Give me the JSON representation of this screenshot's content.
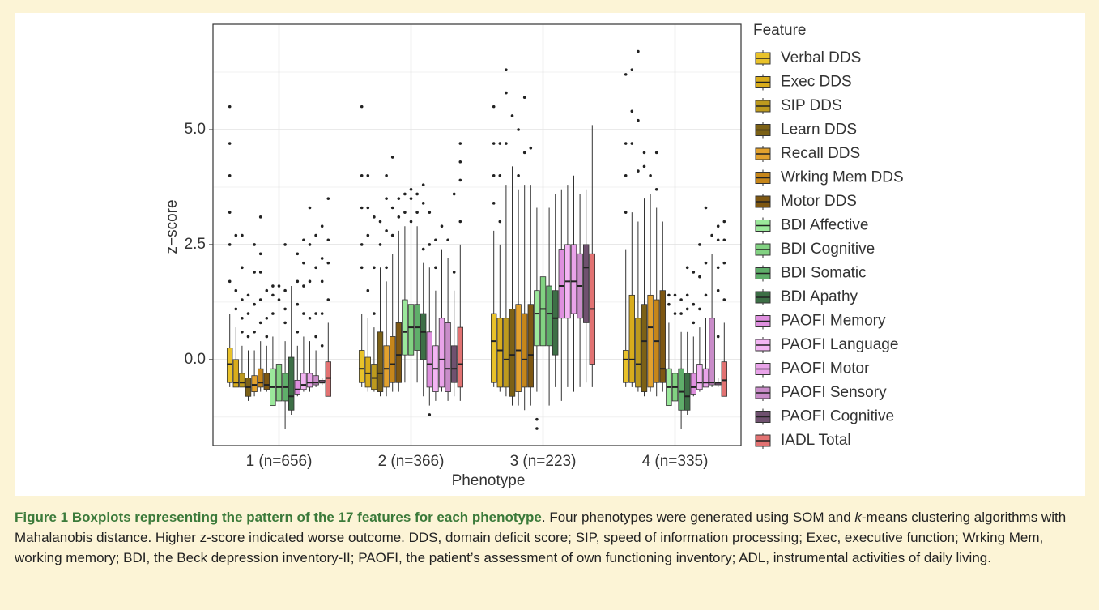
{
  "chart_data": {
    "type": "boxplot",
    "x_label": "Phenotype",
    "y_label": "z−score",
    "categories": [
      "1 (n=656)",
      "2 (n=366)",
      "3 (n=223)",
      "4 (n=335)"
    ],
    "ylim": [
      -1.87,
      7.29
    ],
    "yticks": [
      {
        "value": 0,
        "label": "0.0"
      },
      {
        "value": 2.5,
        "label": "2.5"
      },
      {
        "value": 5,
        "label": "5.0"
      }
    ],
    "minor_yticks": [
      -1.25,
      1.25,
      3.75,
      6.25
    ],
    "grid": true,
    "legend_title": "Feature",
    "legend_position": "right",
    "series": [
      {
        "name": "Verbal DDS",
        "color": "#e9c22a",
        "low": [
          -0.6,
          -0.6,
          -0.6,
          -0.6
        ],
        "q1": [
          -0.5,
          -0.5,
          -0.5,
          -0.5
        ],
        "median": [
          -0.1,
          -0.2,
          0.4,
          0.0
        ],
        "q3": [
          0.25,
          0.2,
          1.0,
          0.2
        ],
        "high": [
          1.0,
          1.0,
          2.8,
          2.4
        ],
        "outliers": [
          [
            1.7,
            2.5,
            3.2,
            4.0,
            4.7,
            5.5
          ],
          [
            2.0,
            2.5,
            3.3,
            4.0,
            5.5
          ],
          [
            3.4,
            4.0,
            4.7,
            5.5
          ],
          [
            3.2,
            4.0,
            4.7,
            6.2
          ]
        ]
      },
      {
        "name": "Exec DDS",
        "color": "#d8ac1c",
        "low": [
          -0.6,
          -0.7,
          -0.7,
          -0.6
        ],
        "q1": [
          -0.6,
          -0.6,
          -0.6,
          -0.5
        ],
        "median": [
          -0.5,
          -0.3,
          0.2,
          0.0
        ],
        "q3": [
          0.0,
          0.05,
          0.9,
          1.4
        ],
        "high": [
          0.7,
          0.9,
          2.5,
          3.2
        ],
        "outliers": [
          [
            1.1,
            1.5,
            2.7
          ],
          [
            1.5,
            2.7,
            3.3,
            4.0
          ],
          [
            3.0,
            4.0,
            4.7
          ],
          [
            4.7,
            5.4,
            6.3
          ]
        ]
      },
      {
        "name": "SIP DDS",
        "color": "#bd9a1e",
        "low": [
          -0.6,
          -0.7,
          -0.8,
          -0.7
        ],
        "q1": [
          -0.6,
          -0.65,
          -0.6,
          -0.6
        ],
        "median": [
          -0.5,
          -0.4,
          0.0,
          -0.1
        ],
        "q3": [
          -0.3,
          -0.1,
          0.9,
          0.9
        ],
        "high": [
          0.3,
          0.7,
          3.8,
          3.0
        ],
        "outliers": [
          [
            0.6,
            0.9,
            1.3,
            2.0,
            2.7
          ],
          [
            1.0,
            2.0,
            3.1
          ],
          [
            4.7,
            5.8,
            6.3
          ],
          [
            4.1,
            5.2,
            6.7
          ]
        ]
      },
      {
        "name": "Learn DDS",
        "color": "#7c6116",
        "low": [
          -0.9,
          -0.8,
          -1.0,
          -0.8
        ],
        "q1": [
          -0.8,
          -0.7,
          -0.8,
          -0.7
        ],
        "median": [
          -0.6,
          -0.3,
          0.1,
          0.4
        ],
        "q3": [
          -0.4,
          0.6,
          1.1,
          1.2
        ],
        "high": [
          0.2,
          2.0,
          4.2,
          3.5
        ],
        "outliers": [
          [
            0.5,
            1.0,
            1.4
          ],
          [
            2.5,
            3.0
          ],
          [
            5.3
          ],
          [
            4.2,
            4.5
          ]
        ]
      },
      {
        "name": "Recall DDS",
        "color": "#e2a12e",
        "low": [
          -0.8,
          -0.8,
          -1.0,
          -0.7
        ],
        "q1": [
          -0.7,
          -0.6,
          -0.7,
          -0.6
        ],
        "median": [
          -0.55,
          -0.2,
          0.2,
          0.7
        ],
        "q3": [
          -0.35,
          0.3,
          1.2,
          1.4
        ],
        "high": [
          0.2,
          1.7,
          3.7,
          3.6
        ],
        "outliers": [
          [
            0.6,
            1.2,
            1.9,
            2.5
          ],
          [
            2.0,
            2.8,
            3.5,
            4.0
          ],
          [
            4.0,
            5.0
          ],
          [
            4.0
          ]
        ]
      },
      {
        "name": "Wrking Mem DDS",
        "color": "#c6861a",
        "low": [
          -0.7,
          -0.7,
          -1.1,
          -0.8
        ],
        "q1": [
          -0.6,
          -0.5,
          -0.6,
          -0.5
        ],
        "median": [
          -0.5,
          -0.1,
          0.0,
          0.4
        ],
        "q3": [
          -0.2,
          0.5,
          1.0,
          1.3
        ],
        "high": [
          0.4,
          2.3,
          3.8,
          3.3
        ],
        "outliers": [
          [
            0.8,
            1.3,
            1.9,
            2.3,
            3.1
          ],
          [
            2.7,
            3.3,
            4.4
          ],
          [
            4.5,
            5.7
          ],
          [
            3.7,
            4.5
          ]
        ]
      },
      {
        "name": "Motor DDS",
        "color": "#7e5712",
        "low": [
          -0.7,
          -0.7,
          -1.0,
          -0.7
        ],
        "q1": [
          -0.65,
          -0.5,
          -0.6,
          -0.5
        ],
        "median": [
          -0.55,
          0.1,
          0.1,
          -0.2
        ],
        "q3": [
          -0.3,
          0.8,
          1.2,
          1.5
        ],
        "high": [
          0.3,
          2.8,
          3.8,
          3.0
        ],
        "outliers": [
          [
            0.5,
            0.9,
            1.5
          ],
          [
            3.1,
            3.5
          ],
          [
            4.6
          ],
          []
        ]
      },
      {
        "name": "BDI Affective",
        "color": "#9be89b",
        "low": [
          -1.0,
          -0.5,
          -0.7,
          -1.0
        ],
        "q1": [
          -1.0,
          0.1,
          0.3,
          -1.0
        ],
        "median": [
          -0.6,
          0.6,
          1.0,
          -0.6
        ],
        "q3": [
          -0.2,
          1.3,
          1.5,
          -0.2
        ],
        "high": [
          0.5,
          2.9,
          3.3,
          0.8
        ],
        "outliers": [
          [
            1.0,
            1.4,
            1.6
          ],
          [
            3.2,
            3.6
          ],
          [
            -1.3,
            -1.5
          ],
          [
            1.2,
            1.4
          ]
        ]
      },
      {
        "name": "BDI Cognitive",
        "color": "#82d282",
        "low": [
          -1.0,
          -0.6,
          -1.1,
          -1.0
        ],
        "q1": [
          -0.9,
          0.1,
          0.3,
          -0.9
        ],
        "median": [
          -0.6,
          0.7,
          1.1,
          -0.6
        ],
        "q3": [
          -0.1,
          1.2,
          1.8,
          -0.3
        ],
        "high": [
          0.8,
          2.6,
          3.6,
          0.8
        ],
        "outliers": [
          [
            1.3,
            1.6
          ],
          [
            3.0,
            3.5,
            3.7
          ],
          [],
          [
            1.0,
            1.4
          ]
        ]
      },
      {
        "name": "BDI Somatic",
        "color": "#5fae6a",
        "low": [
          -1.5,
          -0.5,
          -1.0,
          -1.5
        ],
        "q1": [
          -0.9,
          0.2,
          0.3,
          -1.1
        ],
        "median": [
          -0.6,
          0.7,
          1.0,
          -0.7
        ],
        "q3": [
          -0.3,
          1.2,
          1.6,
          -0.2
        ],
        "high": [
          0.4,
          2.9,
          3.3,
          0.6
        ],
        "outliers": [
          [
            0.8,
            1.1,
            1.5,
            2.5
          ],
          [
            3.2,
            3.6
          ],
          [],
          [
            1.0,
            1.3
          ]
        ]
      },
      {
        "name": "BDI Apathy",
        "color": "#3d6f46",
        "low": [
          -1.2,
          -0.8,
          -0.6,
          -1.2
        ],
        "q1": [
          -1.1,
          0.0,
          0.1,
          -1.1
        ],
        "median": [
          -0.8,
          0.6,
          0.9,
          -0.8
        ],
        "q3": [
          0.05,
          1.0,
          1.5,
          -0.3
        ],
        "high": [
          1.6,
          2.1,
          3.6,
          0.6
        ],
        "outliers": [
          [],
          [
            2.4,
            3.4,
            3.8
          ],
          [],
          [
            1.1,
            1.4,
            2.0
          ]
        ]
      },
      {
        "name": "PAOFI Memory",
        "color": "#de8fde",
        "low": [
          -0.8,
          -1.0,
          -0.9,
          -0.8
        ],
        "q1": [
          -0.75,
          -0.6,
          0.9,
          -0.75
        ],
        "median": [
          -0.65,
          -0.1,
          1.6,
          -0.6
        ],
        "q3": [
          -0.45,
          0.6,
          2.4,
          -0.3
        ],
        "high": [
          0.3,
          2.0,
          3.7,
          0.5
        ],
        "outliers": [
          [
            0.6,
            1.2,
            1.7,
            2.3
          ],
          [
            -1.2,
            2.5,
            3.2
          ],
          [],
          [
            0.8,
            1.2,
            1.9
          ]
        ]
      },
      {
        "name": "PAOFI Language",
        "color": "#f3b4f3",
        "low": [
          -0.7,
          -0.9,
          -0.6,
          -0.7
        ],
        "q1": [
          -0.65,
          -0.7,
          0.9,
          -0.65
        ],
        "median": [
          -0.55,
          -0.2,
          1.7,
          -0.5
        ],
        "q3": [
          -0.3,
          0.3,
          2.5,
          -0.1
        ],
        "high": [
          0.5,
          1.5,
          3.8,
          0.7
        ],
        "outliers": [
          [
            1.0,
            1.6,
            2.1,
            2.6
          ],
          [
            2.0,
            2.6
          ],
          [],
          [
            1.1,
            1.8,
            2.5
          ]
        ]
      },
      {
        "name": "PAOFI Motor",
        "color": "#e9a3e9",
        "low": [
          -0.7,
          -0.7,
          -0.7,
          -0.6
        ],
        "q1": [
          -0.6,
          -0.6,
          1.0,
          -0.6
        ],
        "median": [
          -0.5,
          0.0,
          1.7,
          -0.5
        ],
        "q3": [
          -0.3,
          0.9,
          2.5,
          -0.2
        ],
        "high": [
          0.4,
          2.4,
          4.0,
          0.9
        ],
        "outliers": [
          [
            0.9,
            1.7,
            2.5,
            3.3
          ],
          [
            2.9
          ],
          [],
          [
            1.4,
            2.1,
            3.3
          ]
        ]
      },
      {
        "name": "PAOFI Sensory",
        "color": "#c98cc9",
        "low": [
          -0.6,
          -0.9,
          -0.6,
          -0.6
        ],
        "q1": [
          -0.55,
          -0.7,
          0.9,
          -0.55
        ],
        "median": [
          -0.5,
          -0.2,
          1.6,
          -0.5
        ],
        "q3": [
          -0.35,
          0.8,
          2.3,
          0.9
        ],
        "high": [
          0.2,
          2.2,
          3.6,
          2.3
        ],
        "outliers": [
          [
            0.5,
            1.0,
            2.0,
            2.7
          ],
          [
            2.6
          ],
          [],
          [
            2.7
          ]
        ]
      },
      {
        "name": "PAOFI Cognitive",
        "color": "#6f516f",
        "low": [
          -0.55,
          -0.8,
          -0.5,
          -0.6
        ],
        "q1": [
          -0.5,
          -0.5,
          0.8,
          -0.55
        ],
        "median": [
          -0.5,
          -0.2,
          2.0,
          -0.5
        ],
        "q3": [
          -0.45,
          0.3,
          2.5,
          -0.5
        ],
        "high": [
          -0.4,
          1.5,
          3.7,
          -0.4
        ],
        "outliers": [
          [
            0.3,
            1.0,
            1.7,
            2.2,
            2.9
          ],
          [
            1.9,
            3.6
          ],
          [],
          [
            0.5,
            1.5,
            2.0,
            2.6,
            2.9
          ]
        ]
      },
      {
        "name": "IADL Total",
        "color": "#e27272",
        "low": [
          -0.8,
          -0.9,
          -0.6,
          -0.8
        ],
        "q1": [
          -0.8,
          -0.6,
          -0.1,
          -0.8
        ],
        "median": [
          -0.4,
          -0.1,
          1.1,
          -0.45
        ],
        "q3": [
          -0.05,
          0.7,
          2.3,
          -0.05
        ],
        "high": [
          0.8,
          2.5,
          5.1,
          0.8
        ],
        "outliers": [
          [
            1.3,
            2.1,
            2.6,
            3.5
          ],
          [
            3.0,
            3.9,
            4.3,
            4.7
          ],
          [],
          [
            1.3,
            2.1,
            2.6,
            3.0
          ]
        ]
      }
    ]
  },
  "caption": {
    "label": "Figure 1",
    "title": "Boxplots representing the pattern of the 17 features for each phenotype",
    "text_before": "Four phenotypes were generated using SOM and ",
    "text_italic": "k",
    "text_after": "-means clustering algorithms with Mahalanobis distance. Higher z-score indicated worse outcome. DDS, domain deficit score; SIP, speed of information processing; Exec, executive function; Wrking Mem, working memory; BDI, the Beck depression inventory-II; PAOFI, the patient’s assessment of own functioning inventory; ADL, instrumental activities of daily living."
  }
}
